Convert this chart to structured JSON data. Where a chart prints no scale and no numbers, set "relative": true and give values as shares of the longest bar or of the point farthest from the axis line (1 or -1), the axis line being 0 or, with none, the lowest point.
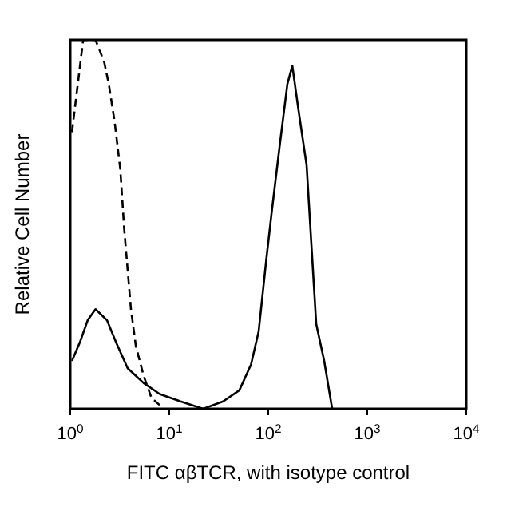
{
  "chart_data": {
    "type": "line",
    "xlabel": "FITC αβTCR, with isotype control",
    "ylabel": "Relative Cell Number",
    "relative": true,
    "log": "x",
    "grid": false,
    "xlim": [
      1,
      10000
    ],
    "xticks": [
      {
        "value": 1,
        "label": "10$^{0}$"
      },
      {
        "value": 10,
        "label": "10$^{1}$"
      },
      {
        "value": 100,
        "label": "10$^{2}$"
      },
      {
        "value": 1000,
        "label": "10$^{3}$"
      },
      {
        "value": 10000,
        "label": "10$^{4}$"
      }
    ],
    "series": [
      {
        "color": "#000000",
        "line_style": "solid",
        "x": [
          1.04,
          1.25,
          1.5,
          1.8,
          2.35,
          2.9,
          3.8,
          5.5,
          8,
          13,
          22,
          35,
          51,
          67,
          80,
          96,
          108,
          130,
          156,
          175,
          202,
          244,
          272,
          305,
          367,
          442
        ],
        "values": [
          0.13,
          0.18,
          0.24,
          0.27,
          0.24,
          0.18,
          0.11,
          0.07,
          0.04,
          0.02,
          0,
          0.02,
          0.05,
          0.12,
          0.21,
          0.41,
          0.53,
          0.71,
          0.88,
          0.93,
          0.81,
          0.66,
          0.45,
          0.23,
          0.13,
          0
        ]
      },
      {
        "color": "#000000",
        "line_style": "dashed",
        "x": [
          1.04,
          1.35,
          1.8,
          2.2,
          2.45,
          2.8,
          3.2,
          3.5,
          4.1,
          4.6,
          5.5,
          6.6,
          8
        ],
        "values": [
          0.75,
          1,
          1,
          0.94,
          0.88,
          0.78,
          0.65,
          0.49,
          0.27,
          0.17,
          0.09,
          0.03,
          0.01
        ]
      }
    ]
  }
}
